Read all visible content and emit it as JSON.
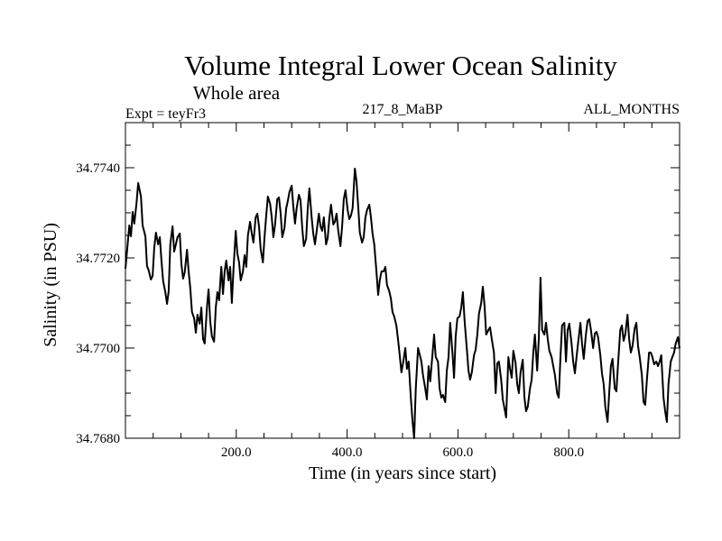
{
  "chart_data": {
    "type": "line",
    "title": "Volume Integral Lower Ocean Salinity",
    "subtitle": "Whole area",
    "annotations": {
      "left": "Expt = teyFr3",
      "center": "217_8_MaBP",
      "right": "ALL_MONTHS"
    },
    "xlabel": "Time (in years since start)",
    "ylabel": "Salinity (in PSU)",
    "xlim": [
      0,
      1000
    ],
    "ylim": [
      34.768,
      34.775
    ],
    "xticks": [
      200,
      400,
      600,
      800
    ],
    "xtick_labels": [
      "200.0",
      "400.0",
      "600.0",
      "800.0"
    ],
    "x_minor_step": 50,
    "yticks": [
      34.768,
      34.77,
      34.772,
      34.774
    ],
    "ytick_labels": [
      "34.7680",
      "34.7700",
      "34.7720",
      "34.7740"
    ],
    "y_minor_step": 0.0005,
    "grid": false,
    "line_color": "#000000",
    "series": [
      {
        "name": "Salinity",
        "x": [
          0,
          3,
          7,
          10,
          13,
          16,
          20,
          23,
          28,
          31,
          36,
          39,
          42,
          46,
          49,
          52,
          55,
          59,
          62,
          65,
          68,
          72,
          75,
          78,
          81,
          85,
          88,
          91,
          94,
          98,
          101,
          104,
          107,
          111,
          114,
          117,
          120,
          124,
          127,
          130,
          134,
          137,
          140,
          143,
          147,
          150,
          153,
          156,
          160,
          163,
          166,
          169,
          173,
          176,
          179,
          182,
          186,
          189,
          192,
          195,
          199,
          202,
          205,
          208,
          212,
          215,
          218,
          221,
          225,
          228,
          231,
          235,
          238,
          241,
          244,
          248,
          251,
          254,
          257,
          261,
          264,
          267,
          270,
          274,
          277,
          280,
          283,
          287,
          290,
          293,
          296,
          300,
          303,
          306,
          309,
          313,
          316,
          319,
          322,
          326,
          329,
          332,
          336,
          339,
          342,
          345,
          349,
          352,
          355,
          358,
          362,
          365,
          368,
          371,
          375,
          378,
          381,
          384,
          388,
          391,
          394,
          397,
          401,
          404,
          407,
          410,
          414,
          417,
          420,
          423,
          427,
          430,
          433,
          436,
          440,
          443,
          446,
          449,
          453,
          456,
          459,
          462,
          466,
          469,
          472,
          476,
          479,
          482,
          485,
          489,
          492,
          495,
          498,
          502,
          505,
          508,
          511,
          515,
          518,
          521,
          524,
          528,
          531,
          534,
          537,
          541,
          544,
          547,
          550,
          554,
          557,
          560,
          564,
          567,
          570,
          573,
          577,
          580,
          583,
          586,
          590,
          593,
          596,
          599,
          603,
          606,
          609,
          612,
          616,
          619,
          622,
          625,
          629,
          632,
          635,
          638,
          642,
          645,
          648,
          651,
          655,
          658,
          661,
          665,
          668,
          671,
          674,
          678,
          681,
          684,
          687,
          691,
          694,
          697,
          700,
          704,
          707,
          710,
          713,
          717,
          720,
          723,
          726,
          730,
          733,
          736,
          739,
          743,
          746,
          749,
          752,
          756,
          759,
          762,
          765,
          769,
          772,
          775,
          779,
          782,
          785,
          788,
          792,
          795,
          798,
          801,
          805,
          808,
          811,
          814,
          818,
          821,
          824,
          827,
          831,
          834,
          837,
          840,
          844,
          847,
          850,
          853,
          857,
          860,
          863,
          866,
          870,
          873,
          876,
          879,
          883,
          886,
          889,
          893,
          896,
          899,
          902,
          906,
          909,
          912,
          915,
          919,
          922,
          925,
          928,
          932,
          935,
          938,
          941,
          945,
          948,
          951,
          954,
          958,
          961,
          964,
          967,
          971,
          974,
          977,
          980,
          984,
          987,
          990,
          993,
          997,
          1000
        ],
        "y": [
          34.77176,
          34.77216,
          34.77272,
          34.77248,
          34.77302,
          34.77276,
          34.77322,
          34.77366,
          34.77336,
          34.77272,
          34.77248,
          34.77182,
          34.77172,
          34.77152,
          34.7716,
          34.77222,
          34.77256,
          34.7723,
          34.77246,
          34.77194,
          34.77148,
          34.77124,
          34.77098,
          34.77126,
          34.7723,
          34.7727,
          34.77214,
          34.7723,
          34.77246,
          34.77254,
          34.77186,
          34.77154,
          34.77168,
          34.77218,
          34.7717,
          34.77134,
          34.7708,
          34.77066,
          34.77034,
          34.77074,
          34.77054,
          34.7709,
          34.7702,
          34.7701,
          34.7709,
          34.7713,
          34.7706,
          34.77026,
          34.77014,
          34.7709,
          34.77124,
          34.77106,
          34.7718,
          34.7712,
          34.7717,
          34.77194,
          34.7715,
          34.7718,
          34.771,
          34.77174,
          34.7726,
          34.7721,
          34.7719,
          34.7715,
          34.7717,
          34.77206,
          34.7718,
          34.7725,
          34.7728,
          34.77254,
          34.77234,
          34.7729,
          34.77298,
          34.7727,
          34.7722,
          34.7719,
          34.77246,
          34.77294,
          34.77336,
          34.7732,
          34.7729,
          34.77246,
          34.77274,
          34.7733,
          34.77334,
          34.773,
          34.77246,
          34.77266,
          34.7731,
          34.77326,
          34.77346,
          34.7736,
          34.77314,
          34.77276,
          34.7731,
          34.7734,
          34.77328,
          34.77266,
          34.77226,
          34.77242,
          34.7731,
          34.77354,
          34.7729,
          34.77254,
          34.7723,
          34.77258,
          34.77298,
          34.7727,
          34.7726,
          34.7729,
          34.7723,
          34.77244,
          34.7729,
          34.77318,
          34.77274,
          34.7728,
          34.77298,
          34.7726,
          34.77226,
          34.7727,
          34.7733,
          34.7735,
          34.77306,
          34.77286,
          34.77294,
          34.7731,
          34.77398,
          34.7737,
          34.77314,
          34.77256,
          34.77234,
          34.77246,
          34.7729,
          34.77306,
          34.77318,
          34.7729,
          34.77254,
          34.7723,
          34.7717,
          34.77118,
          34.7715,
          34.7717,
          34.7717,
          34.7718,
          34.7714,
          34.77126,
          34.7711,
          34.7708,
          34.7707,
          34.7705,
          34.77018,
          34.76984,
          34.76946,
          34.76974,
          34.77,
          34.76954,
          34.7697,
          34.7689,
          34.76838,
          34.768,
          34.7691,
          34.77,
          34.76986,
          34.7697,
          34.7694,
          34.7691,
          34.76886,
          34.7696,
          34.76926,
          34.76986,
          34.7703,
          34.7698,
          34.7697,
          34.7691,
          34.7689,
          34.76896,
          34.7688,
          34.7695,
          34.7698,
          34.77056,
          34.7699,
          34.76934,
          34.77026,
          34.77066,
          34.7707,
          34.7709,
          34.77124,
          34.7706,
          34.77,
          34.7695,
          34.7693,
          34.76946,
          34.76984,
          34.76996,
          34.7703,
          34.77076,
          34.771,
          34.77136,
          34.77094,
          34.7703,
          34.7704,
          34.77046,
          34.7702,
          34.7699,
          34.769,
          34.76966,
          34.7697,
          34.7693,
          34.76886,
          34.76866,
          34.76846,
          34.7698,
          34.76954,
          34.76934,
          34.76994,
          34.76966,
          34.7692,
          34.769,
          34.76946,
          34.76974,
          34.7689,
          34.7686,
          34.7687,
          34.7691,
          34.7693,
          34.7699,
          34.7703,
          34.7695,
          34.7702,
          34.77156,
          34.7704,
          34.7703,
          34.77056,
          34.7702,
          34.76994,
          34.7698,
          34.7696,
          34.7694,
          34.769,
          34.7689,
          34.7698,
          34.7705,
          34.77056,
          34.7697,
          34.7704,
          34.77054,
          34.7701,
          34.7697,
          34.76944,
          34.7698,
          34.77024,
          34.77056,
          34.7701,
          34.76976,
          34.7703,
          34.7706,
          34.77064,
          34.7704,
          34.77,
          34.77032,
          34.77036,
          34.77024,
          34.76984,
          34.76944,
          34.7692,
          34.7687,
          34.76836,
          34.769,
          34.7696,
          34.76976,
          34.7691,
          34.76904,
          34.76964,
          34.7704,
          34.7705,
          34.77016,
          34.7703,
          34.77074,
          34.7702,
          34.7699,
          34.77004,
          34.77044,
          34.77056,
          34.77004,
          34.7698,
          34.7694,
          34.7688,
          34.76874,
          34.7693,
          34.7699,
          34.7699,
          34.7698,
          34.76964,
          34.7697,
          34.7696,
          34.7697,
          34.76984,
          34.7689,
          34.7686,
          34.76836,
          34.7692,
          34.7697,
          34.7698,
          34.7699,
          34.7701,
          34.77024,
          34.77
        ]
      }
    ]
  }
}
